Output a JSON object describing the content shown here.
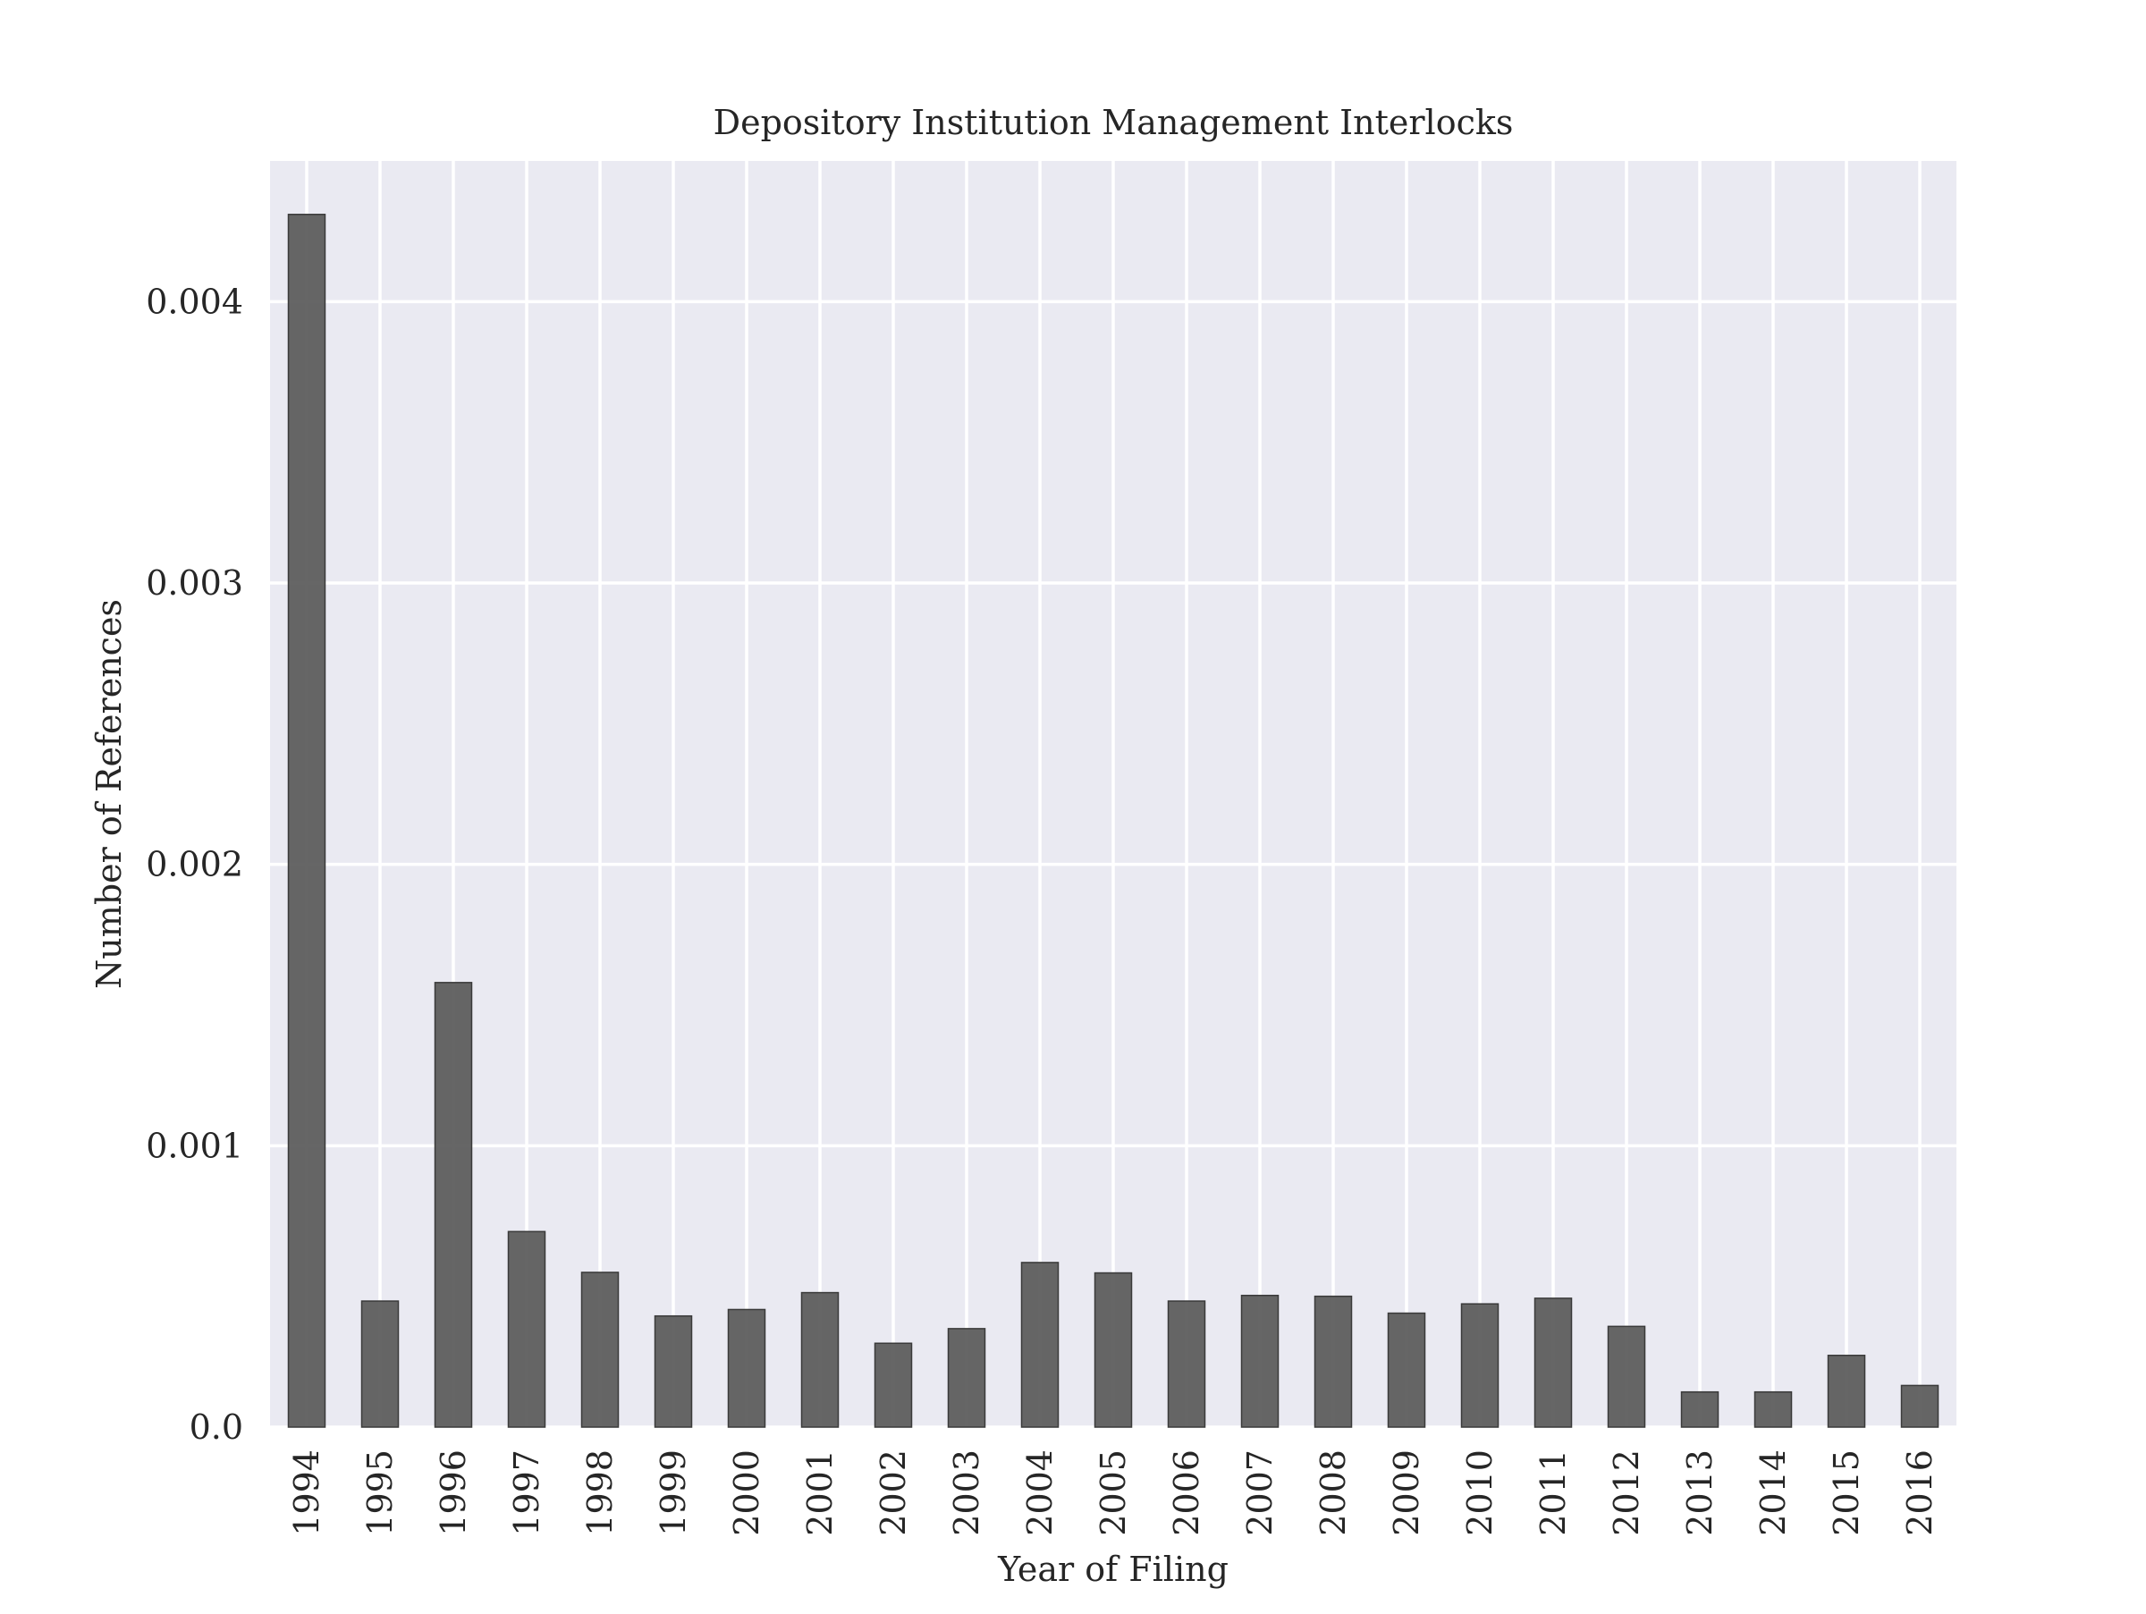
{
  "chart_data": {
    "type": "bar",
    "title": "Depository Institution Management Interlocks",
    "xlabel": "Year of Filing",
    "ylabel": "Number of References",
    "categories": [
      "1994",
      "1995",
      "1996",
      "1997",
      "1998",
      "1999",
      "2000",
      "2001",
      "2002",
      "2003",
      "2004",
      "2005",
      "2006",
      "2007",
      "2008",
      "2009",
      "2010",
      "2011",
      "2012",
      "2013",
      "2014",
      "2015",
      "2016"
    ],
    "values": [
      0.00431,
      0.000448,
      0.00158,
      0.000695,
      0.00055,
      0.000395,
      0.000418,
      0.000478,
      0.000298,
      0.00035,
      0.000585,
      0.000548,
      0.000448,
      0.000468,
      0.000465,
      0.000405,
      0.000438,
      0.000458,
      0.000358,
      0.000125,
      0.000125,
      0.000255,
      0.000148
    ],
    "ylim": [
      0,
      0.0045
    ],
    "yticks": [
      0.0,
      0.001,
      0.002,
      0.003,
      0.004
    ],
    "ytick_labels": [
      "0.0",
      "0.001",
      "0.002",
      "0.003",
      "0.004"
    ],
    "grid": true,
    "colors": {
      "bar": "#595959",
      "bar_edge": "#3a3a3a",
      "axes_bg": "#eaeaf2",
      "grid": "#ffffff"
    }
  }
}
